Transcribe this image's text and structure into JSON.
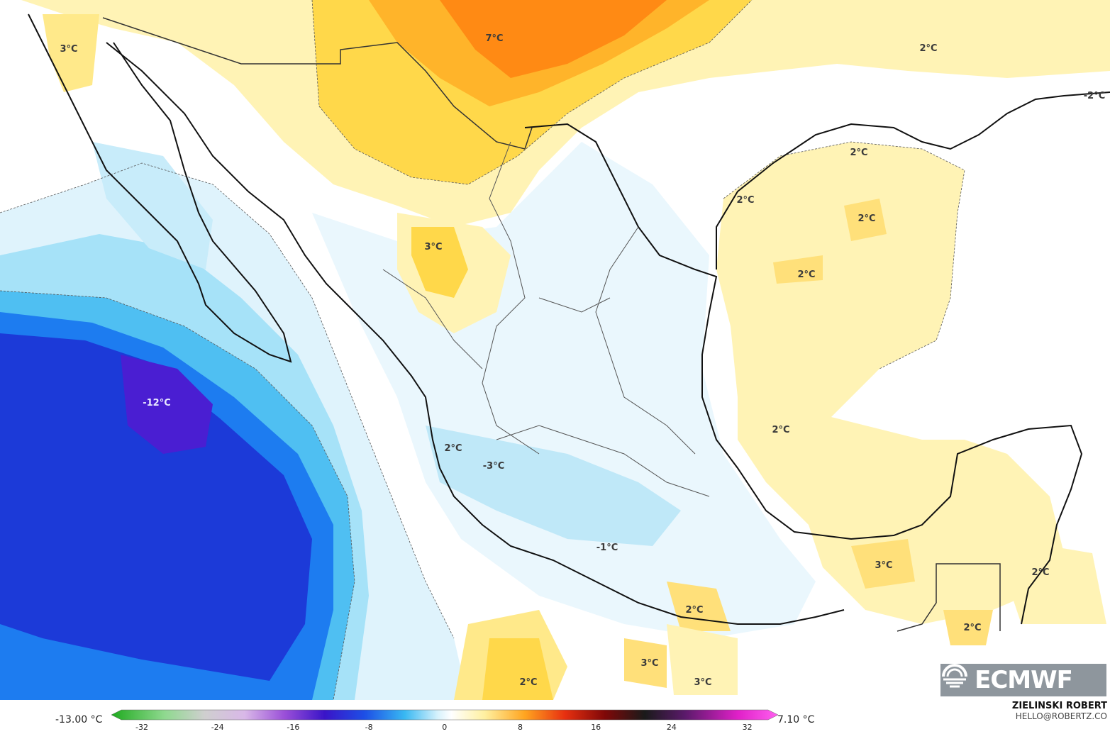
{
  "map": {
    "labels": [
      {
        "text": "3°C"
      },
      {
        "text": "7°C"
      },
      {
        "text": "2°C"
      },
      {
        "text": "-2°C"
      },
      {
        "text": "2°C"
      },
      {
        "text": "2°C"
      },
      {
        "text": "2°C"
      },
      {
        "text": "2°C"
      },
      {
        "text": "3°C"
      },
      {
        "text": "-12°C"
      },
      {
        "text": "2°C"
      },
      {
        "text": "-3°C"
      },
      {
        "text": "2°C"
      },
      {
        "text": "-1°C"
      },
      {
        "text": "3°C"
      },
      {
        "text": "2°C"
      },
      {
        "text": "2°C"
      },
      {
        "text": "2°C"
      },
      {
        "text": "3°C"
      },
      {
        "text": "2°C"
      },
      {
        "text": "3°C"
      }
    ],
    "colors": {
      "ocean_cold_dark": "#2a12c8",
      "ocean_cold_mid": "#1b6bf0",
      "ocean_cold_light": "#5fd0f5",
      "cold_pale": "#c8ecfa",
      "neutral": "#ffffff",
      "warm_pale": "#fff4b8",
      "warm_mid": "#ffd84a",
      "warm_orange": "#ffa520"
    }
  },
  "legend": {
    "min_label": "-13.00 °C",
    "max_label": "7.10 °C",
    "ticks": [
      "-32",
      "-24",
      "-16",
      "-8",
      "0",
      "8",
      "16",
      "24",
      "32"
    ]
  },
  "branding": {
    "logo_text": "ECMWF",
    "author": "ZIELINSKI ROBERT",
    "email": "HELLO@ROBERTZ.CO"
  }
}
